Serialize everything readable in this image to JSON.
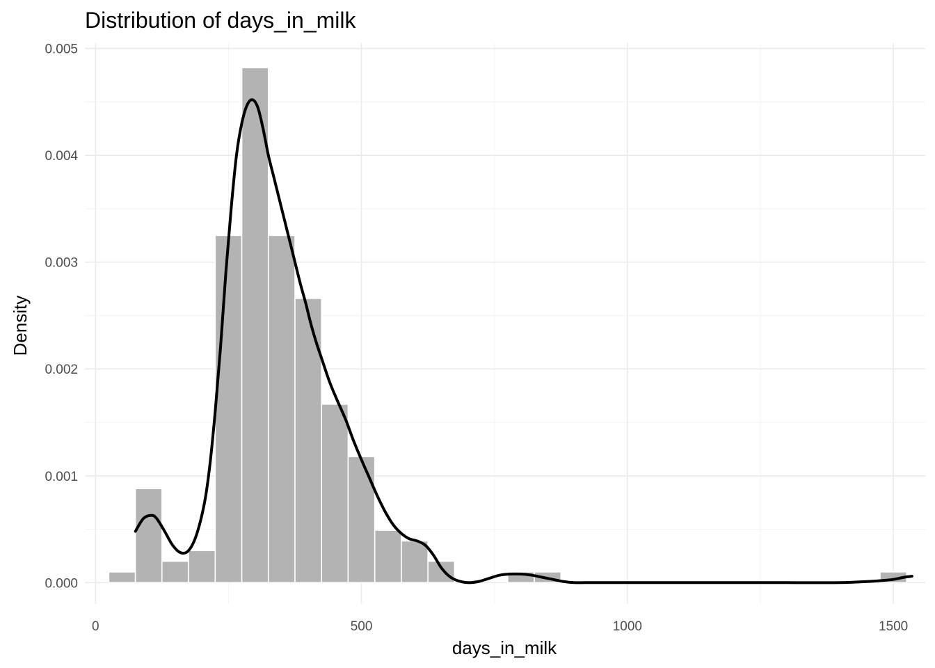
{
  "chart_data": {
    "type": "bar",
    "title": "Distribution of days_in_milk",
    "xlabel": "days_in_milk",
    "ylabel": "Density",
    "xlim": [
      -20,
      1560
    ],
    "ylim": [
      -0.0002,
      0.00505
    ],
    "x_ticks": [
      0,
      500,
      1000,
      1500
    ],
    "x_tick_labels": [
      "0",
      "500",
      "1000",
      "1500"
    ],
    "y_ticks": [
      0,
      0.001,
      0.002,
      0.003,
      0.004,
      0.005
    ],
    "y_tick_labels": [
      "0.000",
      "0.001",
      "0.002",
      "0.003",
      "0.004",
      "0.005"
    ],
    "grid": true,
    "bin_width": 50,
    "histogram": [
      {
        "x_start": 25,
        "x_end": 75,
        "density": 0.0001
      },
      {
        "x_start": 75,
        "x_end": 125,
        "density": 0.00088
      },
      {
        "x_start": 125,
        "x_end": 175,
        "density": 0.0002
      },
      {
        "x_start": 175,
        "x_end": 225,
        "density": 0.0003
      },
      {
        "x_start": 225,
        "x_end": 275,
        "density": 0.00325
      },
      {
        "x_start": 275,
        "x_end": 325,
        "density": 0.00482
      },
      {
        "x_start": 325,
        "x_end": 375,
        "density": 0.00325
      },
      {
        "x_start": 375,
        "x_end": 425,
        "density": 0.00266
      },
      {
        "x_start": 425,
        "x_end": 475,
        "density": 0.00167
      },
      {
        "x_start": 475,
        "x_end": 525,
        "density": 0.00118
      },
      {
        "x_start": 525,
        "x_end": 575,
        "density": 0.00049
      },
      {
        "x_start": 575,
        "x_end": 625,
        "density": 0.00039
      },
      {
        "x_start": 625,
        "x_end": 675,
        "density": 0.0002
      },
      {
        "x_start": 675,
        "x_end": 725,
        "density": 0.0
      },
      {
        "x_start": 725,
        "x_end": 775,
        "density": 0.0
      },
      {
        "x_start": 775,
        "x_end": 825,
        "density": 0.0001
      },
      {
        "x_start": 825,
        "x_end": 875,
        "density": 0.0001
      },
      {
        "x_start": 875,
        "x_end": 925,
        "density": 0.0
      },
      {
        "x_start": 925,
        "x_end": 975,
        "density": 0.0
      },
      {
        "x_start": 975,
        "x_end": 1025,
        "density": 0.0
      },
      {
        "x_start": 1025,
        "x_end": 1075,
        "density": 0.0
      },
      {
        "x_start": 1075,
        "x_end": 1125,
        "density": 0.0
      },
      {
        "x_start": 1125,
        "x_end": 1175,
        "density": 0.0
      },
      {
        "x_start": 1175,
        "x_end": 1225,
        "density": 0.0
      },
      {
        "x_start": 1225,
        "x_end": 1275,
        "density": 0.0
      },
      {
        "x_start": 1275,
        "x_end": 1325,
        "density": 0.0
      },
      {
        "x_start": 1325,
        "x_end": 1375,
        "density": 0.0
      },
      {
        "x_start": 1375,
        "x_end": 1425,
        "density": 0.0
      },
      {
        "x_start": 1425,
        "x_end": 1475,
        "density": 0.0
      },
      {
        "x_start": 1475,
        "x_end": 1525,
        "density": 0.0001
      }
    ],
    "density_curve": {
      "x": [
        75,
        90,
        105,
        115,
        130,
        145,
        160,
        175,
        190,
        205,
        215,
        225,
        235,
        245,
        255,
        265,
        275,
        285,
        295,
        305,
        315,
        325,
        335,
        345,
        355,
        365,
        375,
        385,
        395,
        405,
        415,
        425,
        440,
        455,
        470,
        485,
        500,
        515,
        530,
        545,
        560,
        575,
        590,
        605,
        620,
        635,
        650,
        665,
        680,
        700,
        720,
        740,
        760,
        780,
        800,
        820,
        840,
        860,
        880,
        900,
        920,
        940,
        960,
        1000,
        1100,
        1200,
        1300,
        1400,
        1450,
        1480,
        1500,
        1520,
        1535
      ],
      "y": [
        0.00048,
        0.0006,
        0.00063,
        0.0006,
        0.00048,
        0.00035,
        0.00028,
        0.0003,
        0.00045,
        0.00075,
        0.0011,
        0.0016,
        0.0022,
        0.0029,
        0.0035,
        0.004,
        0.0043,
        0.00447,
        0.00452,
        0.00445,
        0.00425,
        0.004,
        0.0038,
        0.0036,
        0.0034,
        0.0032,
        0.003,
        0.0028,
        0.00262,
        0.00242,
        0.00225,
        0.0021,
        0.00188,
        0.0017,
        0.00153,
        0.00133,
        0.00115,
        0.00098,
        0.00081,
        0.00066,
        0.00054,
        0.00046,
        0.00041,
        0.00039,
        0.00035,
        0.00026,
        0.00014,
        6e-05,
        2e-05,
        0.0,
        1e-05,
        4e-05,
        7e-05,
        8e-05,
        8e-05,
        7e-05,
        5e-05,
        3e-05,
        1e-05,
        0.0,
        0.0,
        0.0,
        0.0,
        0.0,
        0.0,
        0.0,
        0.0,
        0.0,
        1e-05,
        2e-05,
        3e-05,
        5e-05,
        6e-05
      ]
    },
    "colors": {
      "bar_fill": "#b3b3b3",
      "bar_outline": "#ffffff",
      "density_line": "#000000",
      "grid": "#ebebeb",
      "tick_text": "#4d4d4d"
    }
  }
}
